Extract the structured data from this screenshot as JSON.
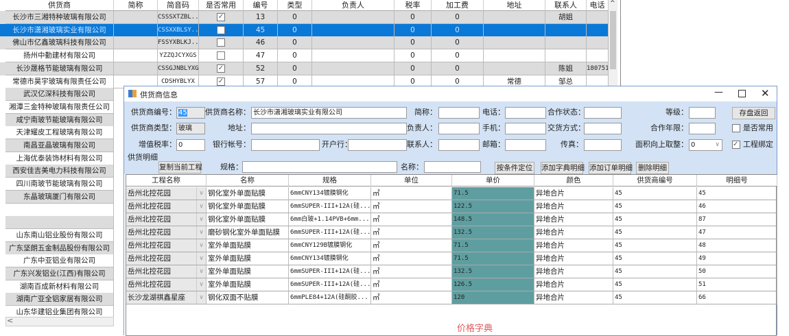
{
  "supplier_list": {
    "columns": [
      "供货商",
      "简称",
      "简音码",
      "是否常用",
      "编号",
      "类型",
      "负责人",
      "税率",
      "加工费",
      "地址",
      "联系人",
      "电话"
    ],
    "rows": [
      {
        "name": "长沙市三湘特种玻璃有限公司",
        "short": "",
        "code": "CSSSXTZBL...",
        "common": true,
        "id": "13",
        "type": "0",
        "manager": "",
        "tax": "0",
        "fee": "0",
        "address": "",
        "contact": "胡姐",
        "phone": ""
      },
      {
        "name": "长沙市潇湘玻璃实业有限公司",
        "short": "",
        "code": "CSSXXBLSY...",
        "common": false,
        "id": "45",
        "type": "0",
        "manager": "",
        "tax": "0",
        "fee": "0",
        "address": "",
        "contact": "",
        "phone": "",
        "selected": true
      },
      {
        "name": "佛山市亿鑫玻璃科技有限公司",
        "short": "",
        "code": "FSSYXBLKJ...",
        "common": false,
        "id": "46",
        "type": "0",
        "manager": "",
        "tax": "0",
        "fee": "0",
        "address": "",
        "contact": "",
        "phone": ""
      },
      {
        "name": "扬州中勤建材有限公司",
        "short": "",
        "code": "YZZQJCYXGS",
        "common": false,
        "id": "47",
        "type": "0",
        "manager": "",
        "tax": "0",
        "fee": "0",
        "address": "",
        "contact": "",
        "phone": ""
      },
      {
        "name": "长沙晟格节能玻璃有限公司",
        "short": "",
        "code": "CSSGJNBLYXGS",
        "common": true,
        "id": "52",
        "type": "0",
        "manager": "",
        "tax": "0",
        "fee": "0",
        "address": "",
        "contact": "陈姐",
        "phone": "180751"
      },
      {
        "name": "常德市昊宇玻璃有限责任公司",
        "short": "",
        "code": "CDSHYBLYX",
        "common": true,
        "id": "57",
        "type": "0",
        "manager": "",
        "tax": "0",
        "fee": "0",
        "address": "常德",
        "contact": "邹总",
        "phone": ""
      }
    ],
    "more_names": [
      "武汉亿深科技有限公司",
      "湘潭三金特种玻璃有限责任公司",
      "咸宁南玻节能玻璃有限公司",
      "天津耀皮工程玻璃有限公司",
      "南昌亚晶玻璃有限公司",
      "上海优泰装饰材料有限公司",
      "西安佳吉美电力科技有限公司",
      "四川南玻节能玻璃有限公司",
      "东晶玻璃厦门有限公司",
      "",
      "",
      "山东南山铝业股份有限公司",
      "广东坚朗五金制品股份有限公司",
      "广东中亚铝业有限公司",
      "广东兴发铝业(江西)有限公司",
      "湖南百成新材料有限公司",
      "湖南广亚全铝家居有限公司",
      "山东华建铝业集团有限公司"
    ]
  },
  "dialog": {
    "title": "供货商信息",
    "form": {
      "supplier_no_label": "供货商编号：",
      "supplier_no": "45",
      "supplier_name_label": "供货商名称：",
      "supplier_name": "长沙市潇湘玻璃实业有限公司",
      "short_label": "简称：",
      "short": "",
      "phone_label": "电话：",
      "phone": "",
      "coop_status_label": "合作状态：",
      "coop_status": "",
      "level_label": "等级：",
      "level": "",
      "save_button": "存盘返回",
      "supplier_type_label": "供货商类型：",
      "supplier_type": "玻璃",
      "address_label": "地址：",
      "address": "",
      "manager_label": "负责人：",
      "manager": "",
      "mobile_label": "手机：",
      "mobile": "",
      "delivery_label": "交货方式：",
      "delivery": "",
      "coop_years_label": "合作年限：",
      "coop_years": "",
      "common_label": "是否常用",
      "common": false,
      "vat_label": "增值税率：",
      "vat": "0",
      "bank_account_label": "银行帐号：",
      "bank_account": "",
      "bank_label": "开户行：",
      "bank": "",
      "contact_label": "联系人：",
      "contact": "",
      "email_label": "邮箱：",
      "email": "",
      "fax_label": "传真：",
      "fax": "",
      "round_label": "面积向上取整：",
      "round": "0",
      "project_bind_label": "工程绑定",
      "project_bind": true
    },
    "detail": {
      "section_label": "供货明细",
      "copy_button": "复制当前工程",
      "spec_label": "规格：",
      "spec": "",
      "name_label": "名称：",
      "name": "",
      "locate_button": "按条件定位",
      "add_dict_button": "添加字典明细",
      "add_order_button": "添加订单明细",
      "delete_button": "删除明细"
    },
    "grid": {
      "columns": [
        "工程名称",
        "名称",
        "规格",
        "单位",
        "单价",
        "颜色",
        "供货商编号",
        "明细号"
      ],
      "rows": [
        [
          "岳州北控花园",
          "钢化室外单面贴膜",
          "6mmCNY134镀膜钢化",
          "㎡",
          "71.5",
          "异地合片",
          "45",
          "45"
        ],
        [
          "岳州北控花园",
          "钢化室外单面贴膜",
          "6mmSUPER-III+12A(硅...",
          "㎡",
          "122.5",
          "异地合片",
          "45",
          "46"
        ],
        [
          "岳州北控花园",
          "钢化室外单面贴膜",
          "6mm白玻+1.14PVB+6mm...",
          "㎡",
          "148.5",
          "异地合片",
          "45",
          "87"
        ],
        [
          "岳州北控花园",
          "磨砂钢化室外单面贴膜",
          "6mmSUPER-III+12A(硅...",
          "㎡",
          "132.5",
          "异地合片",
          "45",
          "47"
        ],
        [
          "岳州北控花园",
          "室外单面贴膜",
          "6mmCNY129B镀膜钢化",
          "㎡",
          "71.5",
          "异地合片",
          "45",
          "48"
        ],
        [
          "岳州北控花园",
          "室外单面贴膜",
          "6mmCNY134镀膜钢化",
          "㎡",
          "71.5",
          "异地合片",
          "45",
          "49"
        ],
        [
          "岳州北控花园",
          "室外单面贴膜",
          "6mmSUPER-III+12A(硅...",
          "㎡",
          "132.5",
          "异地合片",
          "45",
          "50"
        ],
        [
          "岳州北控花园",
          "室外单面贴膜",
          "6mmSUPER-III+12A(硅...",
          "㎡",
          "126.5",
          "异地合片",
          "45",
          "51"
        ],
        [
          "长沙龙湖祺鑫星座",
          "钢化双面不贴膜",
          "6mmPLE84+12A(硅酮胶...",
          "㎡",
          "120",
          "异地合片",
          "45",
          "66"
        ]
      ]
    },
    "footer_label": "价格字典"
  },
  "colors": {
    "selection": "#0a78d7",
    "price_cell": "#5f9ea0",
    "form_bg": "#d3e2f4",
    "footer_text": "#e05a5a"
  }
}
